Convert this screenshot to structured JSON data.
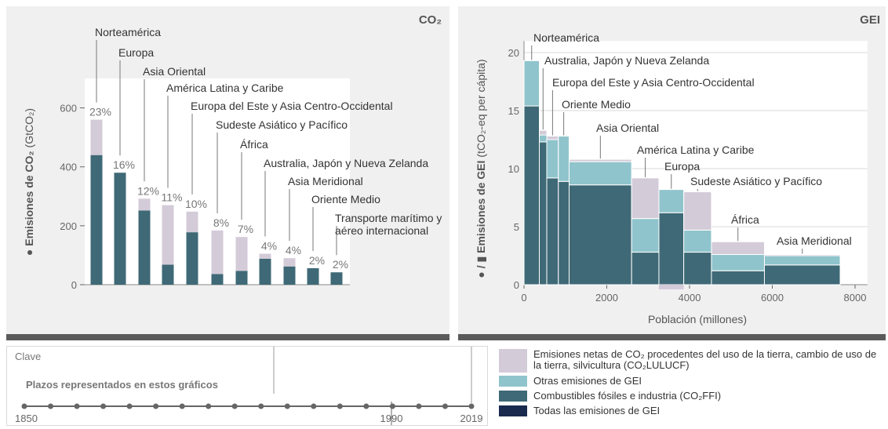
{
  "left_panel": {
    "corner_label": "CO₂"
  },
  "right_panel": {
    "corner_label": "GEI"
  },
  "colors": {
    "lulucf": "#d4cbd9",
    "other_ghg": "#90c4cc",
    "fossil": "#3f6976",
    "all_ghg": "#1a2a4f"
  },
  "chart_data": [
    {
      "type": "bar",
      "stacked": true,
      "ylabel": "Emisiones de CO₂ (GtCO₂)",
      "ylim": [
        0,
        700
      ],
      "yticks": [
        0,
        200,
        400,
        600
      ],
      "categories": [
        "Norteamérica",
        "Europa",
        "Asia Oriental",
        "América Latina y Caribe",
        "Europa del Este y Asia Centro-Occidental",
        "Sudeste Asiático y Pacífico",
        "África",
        "Australia, Japón y Nueva Zelanda",
        "Asia Meridional",
        "Oriente Medio",
        "Transporte marítimo y aéreo internacional"
      ],
      "category_label_lines": [
        [
          "Norteamérica"
        ],
        [
          "Europa"
        ],
        [
          "Asia Oriental"
        ],
        [
          "América Latina y Caribe"
        ],
        [
          "Europa del Este y Asia Centro-Occidental"
        ],
        [
          "Sudeste Asiático y Pacífico"
        ],
        [
          "África"
        ],
        [
          "Australia, Japón y Nueva Zelanda"
        ],
        [
          "Asia Meridional"
        ],
        [
          "Oriente Medio"
        ],
        [
          "Transporte marítimo y",
          "aéreo internacional"
        ]
      ],
      "percent_labels": [
        "23%",
        "16%",
        "12%",
        "11%",
        "10%",
        "8%",
        "7%",
        "4%",
        "4%",
        "2%",
        "2%"
      ],
      "series": [
        {
          "name": "Combustibles fósiles e industria (CO₂FFI)",
          "values": [
            440,
            380,
            252,
            68,
            178,
            36,
            47,
            88,
            62,
            56,
            42
          ]
        },
        {
          "name": "Emisiones netas de CO₂ procedentes del uso de la tierra, cambio de uso de la tierra, silvicultura (CO₂LULUCF)",
          "values": [
            120,
            0,
            40,
            202,
            70,
            148,
            115,
            17,
            28,
            0,
            0
          ]
        }
      ]
    },
    {
      "type": "bar",
      "variant": "variable-width",
      "xlabel": "Población (millones)",
      "ylabel": "Emisiones de GEI (tCO₂-eq per cápita)",
      "xlim": [
        0,
        8300
      ],
      "ylim": [
        0,
        21
      ],
      "xticks": [
        0,
        2000,
        4000,
        6000,
        8000
      ],
      "yticks": [
        0,
        5,
        10,
        15,
        20
      ],
      "regions": [
        {
          "name": "Norteamérica",
          "x0": 0,
          "x1": 370,
          "fossil": 15.4,
          "other": 3.9,
          "lulucf": 0
        },
        {
          "name": "Australia, Japón y Nueva Zelanda",
          "x0": 370,
          "x1": 550,
          "fossil": 12.3,
          "other": 0.6,
          "lulucf": 0.4
        },
        {
          "name": "Europa del Este y Asia Centro-Occidental",
          "x0": 550,
          "x1": 830,
          "fossil": 9.2,
          "other": 3.3,
          "lulucf": 0.3
        },
        {
          "name": "Oriente Medio",
          "x0": 830,
          "x1": 1090,
          "fossil": 8.9,
          "other": 3.9,
          "lulucf": 0
        },
        {
          "name": "Asia Oriental",
          "x0": 1090,
          "x1": 2600,
          "fossil": 8.6,
          "other": 2.0,
          "lulucf": 0.2
        },
        {
          "name": "América Latina y Caribe",
          "x0": 2600,
          "x1": 3260,
          "fossil": 2.8,
          "other": 2.9,
          "lulucf": 3.5
        },
        {
          "name": "Europa",
          "x0": 3260,
          "x1": 3860,
          "fossil": 6.2,
          "other": 2.0,
          "lulucf": -0.2
        },
        {
          "name": "Sudeste Asiático y Pacífico",
          "x0": 3860,
          "x1": 4530,
          "fossil": 2.8,
          "other": 1.9,
          "lulucf": 3.3
        },
        {
          "name": "África",
          "x0": 4530,
          "x1": 5810,
          "fossil": 1.2,
          "other": 1.4,
          "lulucf": 1.1
        },
        {
          "name": "Asia Meridional",
          "x0": 5810,
          "x1": 7640,
          "fossil": 1.7,
          "other": 0.8,
          "lulucf": 0.1
        }
      ]
    }
  ],
  "key": {
    "title": "Clave",
    "subtitle": "Plazos representados en estos gráficos",
    "year_start": "1850",
    "year_mid": "1990",
    "year_end": "2019"
  },
  "legend": [
    {
      "label": "Emisiones netas de CO₂ procedentes del uso de la tierra, cambio de uso de la tierra, silvicultura (CO₂LULUCF)",
      "color": "#d4cbd9"
    },
    {
      "label": "Otras emisiones de GEI",
      "color": "#90c4cc"
    },
    {
      "label": "Combustibles fósiles e industria (CO₂FFI)",
      "color": "#3f6976"
    },
    {
      "label": "Todas las emisiones de GEI",
      "color": "#1a2a4f"
    }
  ]
}
